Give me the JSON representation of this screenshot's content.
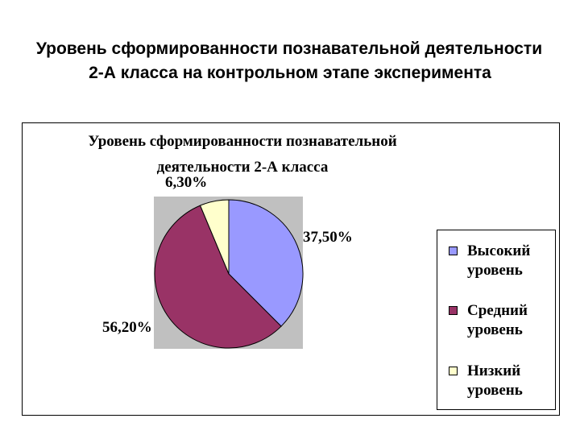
{
  "slide": {
    "title_line1": "Уровень сформированности познавательной деятельности",
    "title_line2": "2-А класса на контрольном этапе эксперимента"
  },
  "chart_data": {
    "type": "pie",
    "title_line1": "Уровень сформированности познавательной",
    "title_line2": "деятельности 2-А класса",
    "legend_position": "right",
    "slices": [
      {
        "name": "Высокий уровень",
        "legend_line1": "Высокий",
        "legend_line2": "уровень",
        "value": 37.5,
        "label": "37,50%",
        "color": "#9999ff"
      },
      {
        "name": "Средний уровень",
        "legend_line1": "Средний",
        "legend_line2": "уровень",
        "value": 56.2,
        "label": "56,20%",
        "color": "#993366"
      },
      {
        "name": "Низкий уровень",
        "legend_line1": "Низкий",
        "legend_line2": "уровень",
        "value": 6.3,
        "label": "6,30%",
        "color": "#ffffcc"
      }
    ],
    "plot_area_color": "#c0c0c0"
  }
}
